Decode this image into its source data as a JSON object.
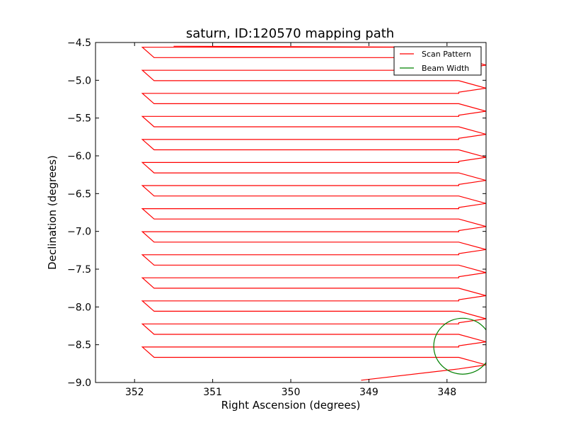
{
  "chart_data": {
    "type": "line",
    "title": "saturn, ID:120570 mapping path",
    "xlabel": "Right Ascension (degrees)",
    "ylabel": "Declination (degrees)",
    "xlim": [
      352.5,
      347.5
    ],
    "ylim": [
      -9.0,
      -4.5
    ],
    "x_inverted": true,
    "xticks": [
      352,
      351,
      350,
      349,
      348
    ],
    "xtick_labels": [
      "352",
      "351",
      "350",
      "349",
      "348"
    ],
    "yticks": [
      -4.5,
      -5.0,
      -5.5,
      -6.0,
      -6.5,
      -7.0,
      -7.5,
      -8.0,
      -8.5,
      -9.0
    ],
    "ytick_labels": [
      "−4.5",
      "−5.0",
      "−5.5",
      "−6.0",
      "−6.5",
      "−7.0",
      "−7.5",
      "−8.0",
      "−8.5",
      "−9.0"
    ],
    "grid": false,
    "legend_position": "top-right",
    "colors": {
      "scan": "#ff0000",
      "beam": "#008000"
    },
    "series": [
      {
        "name": "Scan Pattern",
        "ra_left": 351.9,
        "ra_right": 347.5,
        "ra_indent_left": 351.75,
        "ra_indent_right": 347.85,
        "dec_min": -8.82,
        "dec_max": -4.7,
        "n_rows": 28,
        "start": {
          "ra": 349.1,
          "dec": -8.97
        },
        "end": {
          "ra": 351.5,
          "dec": -4.55
        }
      },
      {
        "name": "Beam Width",
        "center": {
          "ra": 347.8,
          "dec": -8.52
        },
        "radius_deg": 0.37
      }
    ]
  }
}
